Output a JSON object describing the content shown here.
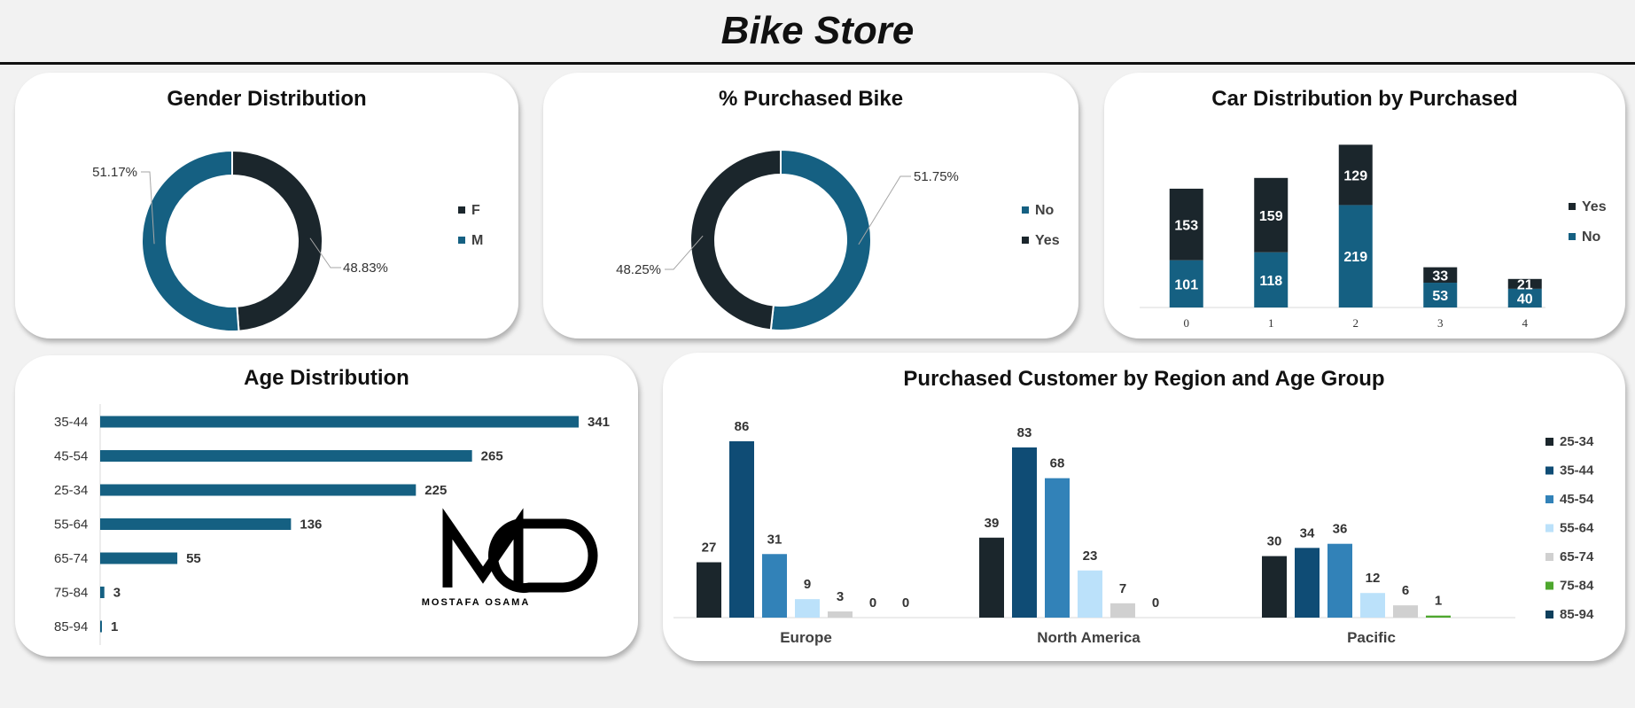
{
  "page": {
    "title": "Bike Store"
  },
  "colors": {
    "dark": "#1b262c",
    "blue": "#156082",
    "age": {
      "25-34": "#1b262c",
      "35-44": "#0f4c75",
      "45-54": "#3282b8",
      "55-64": "#bbe1fa",
      "65-74": "#d0d0d0",
      "75-84": "#4ea72e",
      "85-94": "#0e3f5c"
    }
  },
  "logo": {
    "mark": "MO",
    "name": "MOSTAFA OSAMA"
  },
  "chart_data": [
    {
      "id": "gender",
      "type": "pie",
      "title": "Gender Distribution",
      "legend_position": "right",
      "slices": [
        {
          "label": "F",
          "value": 48.83,
          "display": "48.83%",
          "color": "#1b262c"
        },
        {
          "label": "M",
          "value": 51.17,
          "display": "51.17%",
          "color": "#156082"
        }
      ]
    },
    {
      "id": "purchased",
      "type": "pie",
      "title": "% Purchased Bike",
      "legend_position": "right",
      "slices": [
        {
          "label": "No",
          "value": 51.75,
          "display": "51.75%",
          "color": "#156082"
        },
        {
          "label": "Yes",
          "value": 48.25,
          "display": "48.25%",
          "color": "#1b262c"
        }
      ]
    },
    {
      "id": "cars",
      "type": "bar",
      "stacked": true,
      "title": "Car Distribution by Purchased",
      "legend_position": "right",
      "categories": [
        "0",
        "1",
        "2",
        "3",
        "4"
      ],
      "series": [
        {
          "name": "No",
          "color": "#156082",
          "values": [
            101,
            118,
            219,
            53,
            40
          ]
        },
        {
          "name": "Yes",
          "color": "#1b262c",
          "values": [
            153,
            159,
            129,
            33,
            21
          ]
        }
      ],
      "ylim": [
        0,
        360
      ]
    },
    {
      "id": "age",
      "type": "bar",
      "orientation": "horizontal",
      "title": "Age Distribution",
      "categories": [
        "35-44",
        "45-54",
        "25-34",
        "55-64",
        "65-74",
        "75-84",
        "85-94"
      ],
      "values": [
        341,
        265,
        225,
        136,
        55,
        3,
        1
      ],
      "color": "#156082",
      "xlim": [
        0,
        341
      ]
    },
    {
      "id": "region",
      "type": "bar",
      "title": "Purchased Customer by Region and Age Group",
      "legend_position": "right",
      "categories": [
        "Europe",
        "North America",
        "Pacific"
      ],
      "series": [
        {
          "name": "25-34",
          "color": "#1b262c",
          "values": [
            27,
            39,
            30
          ]
        },
        {
          "name": "35-44",
          "color": "#0f4c75",
          "values": [
            86,
            83,
            34
          ]
        },
        {
          "name": "45-54",
          "color": "#3282b8",
          "values": [
            31,
            68,
            36
          ]
        },
        {
          "name": "55-64",
          "color": "#bbe1fa",
          "values": [
            9,
            23,
            12
          ]
        },
        {
          "name": "65-74",
          "color": "#d0d0d0",
          "values": [
            3,
            7,
            6
          ]
        },
        {
          "name": "75-84",
          "color": "#4ea72e",
          "values": [
            0,
            0,
            1
          ]
        },
        {
          "name": "85-94",
          "color": "#0e3f5c",
          "values": [
            0,
            null,
            null
          ]
        }
      ],
      "ylim": [
        0,
        86
      ]
    }
  ]
}
